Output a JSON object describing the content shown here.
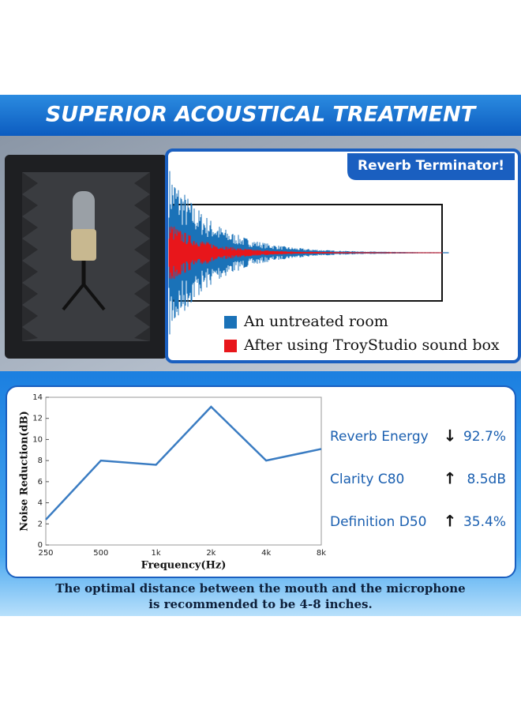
{
  "header": {
    "title": "SUPERIOR ACOUSTICAL TREATMENT"
  },
  "waveform": {
    "badge": "Reverb Terminator!",
    "legend": [
      {
        "name": "An untreated room",
        "color": "#1a72b8"
      },
      {
        "name": "After using TroyStudio sound box",
        "color": "#e8161b"
      }
    ]
  },
  "chart_data": {
    "type": "line",
    "title": null,
    "categories": [
      "250",
      "500",
      "1k",
      "2k",
      "4k",
      "8k"
    ],
    "values": [
      2.4,
      8.0,
      7.6,
      13.1,
      8.0,
      9.1
    ],
    "color": "#3a7cc2",
    "xlabel": "Frequency(Hz)",
    "ylabel": "Noise Reduction(dB)",
    "ylim": [
      0,
      14
    ],
    "yticks": [
      0,
      2,
      4,
      6,
      8,
      10,
      12,
      14
    ],
    "grid": false
  },
  "metrics": [
    {
      "label": "Reverb Energy",
      "arrow": "↓",
      "value": "92.7%"
    },
    {
      "label": "Clarity C80",
      "arrow": "↑",
      "value": "8.5dB"
    },
    {
      "label": "Definition D50",
      "arrow": "↑",
      "value": "35.4%"
    }
  ],
  "footer": {
    "lines": [
      "The optimal distance between the mouth and the microphone",
      "is recommended to be 4-8 inches."
    ]
  }
}
